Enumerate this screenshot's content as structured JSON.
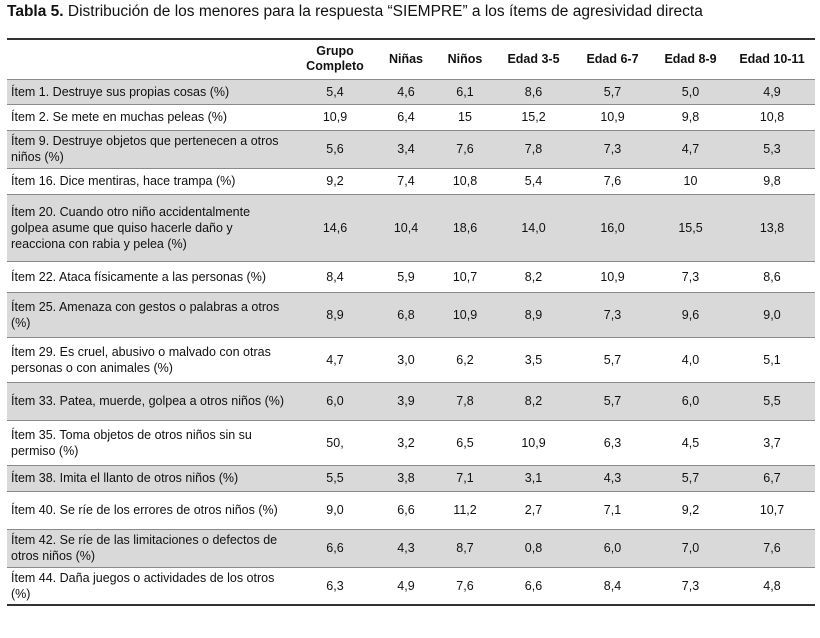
{
  "caption": {
    "label": "Tabla 5.",
    "text": " Distribución de los menores para la respuesta “SIEMPRE” a los ítems de agresividad directa"
  },
  "columns": [
    {
      "line1": "",
      "line2": ""
    },
    {
      "line1": "Grupo",
      "line2": "Completo"
    },
    {
      "line1": "Niñas",
      "line2": ""
    },
    {
      "line1": "Niños",
      "line2": ""
    },
    {
      "line1": "Edad 3-5",
      "line2": ""
    },
    {
      "line1": "Edad 6-7",
      "line2": ""
    },
    {
      "line1": "Edad 8-9",
      "line2": ""
    },
    {
      "line1": "Edad 10-11",
      "line2": ""
    }
  ],
  "rows": [
    {
      "item": "Ítem 1. Destruye sus propias cosas (%)",
      "values": [
        "5,4",
        "4,6",
        "6,1",
        "8,6",
        "5,7",
        "5,0",
        "4,9"
      ]
    },
    {
      "item": "Ítem 2. Se mete en muchas peleas (%)",
      "values": [
        "10,9",
        "6,4",
        "15",
        "15,2",
        "10,9",
        "9,8",
        "10,8"
      ]
    },
    {
      "item": "Ítem 9. Destruye objetos que pertenecen a otros niños (%)",
      "values": [
        "5,6",
        "3,4",
        "7,6",
        "7,8",
        "7,3",
        "4,7",
        "5,3"
      ]
    },
    {
      "item": "Ítem 16. Dice mentiras, hace trampa (%)",
      "values": [
        "9,2",
        "7,4",
        "10,8",
        "5,4",
        "7,6",
        "10",
        "9,8"
      ]
    },
    {
      "item": "Ítem 20. Cuando otro niño accidentalmente golpea asume que quiso hacerle daño y reacciona con rabia y pelea (%)",
      "values": [
        "14,6",
        "10,4",
        "18,6",
        "14,0",
        "16,0",
        "15,5",
        "13,8"
      ]
    },
    {
      "item": "Ítem 22. Ataca físicamente a las personas (%)",
      "values": [
        "8,4",
        "5,9",
        "10,7",
        "8,2",
        "10,9",
        "7,3",
        "8,6"
      ]
    },
    {
      "item": "Ítem 25. Amenaza con gestos o palabras a otros (%)",
      "values": [
        "8,9",
        "6,8",
        "10,9",
        "8,9",
        "7,3",
        "9,6",
        "9,0"
      ]
    },
    {
      "item": "Ítem 29. Es cruel, abusivo o malvado con otras personas o con animales (%)",
      "values": [
        "4,7",
        "3,0",
        "6,2",
        "3,5",
        "5,7",
        "4,0",
        "5,1"
      ]
    },
    {
      "item": "Ítem 33. Patea, muerde, golpea a otros niños (%)",
      "values": [
        "6,0",
        "3,9",
        "7,8",
        "8,2",
        "5,7",
        "6,0",
        "5,5"
      ]
    },
    {
      "item": "Ítem 35. Toma objetos de otros niños sin su permiso (%)",
      "values": [
        "50,",
        "3,2",
        "6,5",
        "10,9",
        "6,3",
        "4,5",
        "3,7"
      ]
    },
    {
      "item": "Ítem 38. Imita el llanto de otros niños (%)",
      "values": [
        "5,5",
        "3,8",
        "7,1",
        "3,1",
        "4,3",
        "5,7",
        "6,7"
      ]
    },
    {
      "item": "Ítem 40. Se ríe de los errores de otros niños (%)",
      "values": [
        "9,0",
        "6,6",
        "11,2",
        "2,7",
        "7,1",
        "9,2",
        "10,7"
      ]
    },
    {
      "item": "Ítem 42. Se ríe de las limitaciones o defectos de otros niños (%)",
      "values": [
        "6,6",
        "4,3",
        "8,7",
        "0,8",
        "6,0",
        "7,0",
        "7,6"
      ]
    },
    {
      "item": "Ítem 44. Daña juegos o actividades de los otros (%)",
      "values": [
        "6,3",
        "4,9",
        "7,6",
        "6,6",
        "8,4",
        "7,3",
        "4,8"
      ]
    }
  ],
  "colors": {
    "shaded_row": "#d9d9d9",
    "rule": "#333333"
  }
}
